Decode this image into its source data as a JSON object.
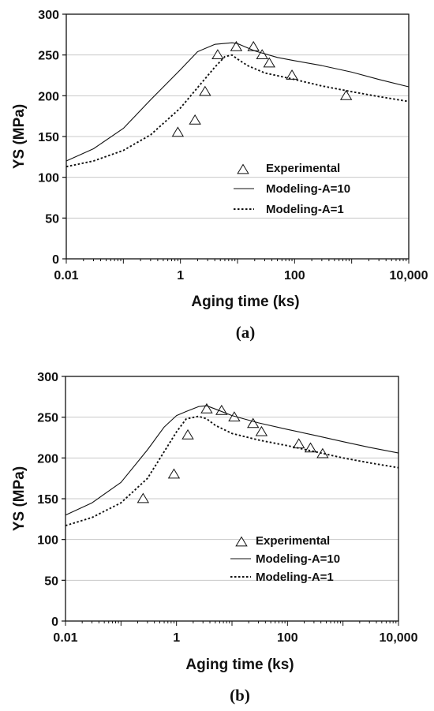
{
  "chart_data": [
    {
      "type": "scatter",
      "panel_label": "(a)",
      "xlabel": "Aging time (ks)",
      "ylabel": "YS (MPa)",
      "xscale": "log",
      "xlim": [
        0.01,
        10000
      ],
      "ylim": [
        0,
        300
      ],
      "x_ticks": [
        0.01,
        1,
        100,
        10000
      ],
      "x_tick_labels": [
        "0.01",
        "1",
        "100",
        "10,000"
      ],
      "y_ticks": [
        0,
        50,
        100,
        150,
        200,
        250,
        300
      ],
      "y_tick_labels": [
        "0",
        "50",
        "100",
        "150",
        "200",
        "250",
        "300"
      ],
      "grid": "horizontal",
      "legend_position": "center-right",
      "series": [
        {
          "name": "Experimental",
          "style": "triangle-marker",
          "x": [
            0.9,
            1.8,
            2.7,
            4.5,
            9.5,
            19,
            27,
            36,
            90,
            800
          ],
          "y": [
            155,
            170,
            205,
            250,
            260,
            260,
            250,
            240,
            225,
            200
          ]
        },
        {
          "name": "Modeling-A=10",
          "style": "solid",
          "x": [
            0.01,
            0.03,
            0.1,
            0.3,
            1,
            2,
            4,
            8,
            10,
            20,
            50,
            100,
            300,
            1000,
            3000,
            10000
          ],
          "y": [
            120,
            135,
            160,
            195,
            232,
            254,
            263,
            265,
            264,
            255,
            247,
            243,
            237,
            229,
            220,
            211
          ]
        },
        {
          "name": "Modeling-A=1",
          "style": "dotted",
          "x": [
            0.01,
            0.03,
            0.1,
            0.3,
            1,
            2,
            4,
            6,
            8,
            10,
            15,
            30,
            100,
            300,
            1000,
            3000,
            10000
          ],
          "y": [
            113,
            120,
            133,
            152,
            185,
            210,
            235,
            248,
            250,
            245,
            237,
            228,
            220,
            212,
            205,
            199,
            193
          ]
        }
      ]
    },
    {
      "type": "scatter",
      "panel_label": "(b)",
      "xlabel": "Aging time (ks)",
      "ylabel": "YS (MPa)",
      "xscale": "log",
      "xlim": [
        0.01,
        10000
      ],
      "ylim": [
        0,
        300
      ],
      "x_ticks": [
        0.01,
        1,
        100,
        10000
      ],
      "x_tick_labels": [
        "0.01",
        "1",
        "100",
        "10,000"
      ],
      "y_ticks": [
        0,
        50,
        100,
        150,
        200,
        250,
        300
      ],
      "y_tick_labels": [
        "0",
        "50",
        "100",
        "150",
        "200",
        "250",
        "300"
      ],
      "grid": "horizontal",
      "legend_position": "bottom-right",
      "series": [
        {
          "name": "Experimental",
          "style": "triangle-marker",
          "x": [
            0.25,
            0.9,
            1.6,
            3.5,
            6.5,
            11,
            24,
            34,
            160,
            260,
            430
          ],
          "y": [
            150,
            180,
            228,
            260,
            258,
            250,
            242,
            232,
            217,
            212,
            205
          ]
        },
        {
          "name": "Modeling-A=10",
          "style": "solid",
          "x": [
            0.01,
            0.03,
            0.1,
            0.3,
            0.6,
            1,
            1.5,
            2.5,
            3.5,
            5,
            10,
            30,
            100,
            300,
            1000,
            3000,
            10000
          ],
          "y": [
            130,
            145,
            170,
            210,
            238,
            252,
            257,
            263,
            264,
            260,
            252,
            243,
            235,
            228,
            220,
            213,
            206
          ]
        },
        {
          "name": "Modeling-A=1",
          "style": "dotted",
          "x": [
            0.01,
            0.03,
            0.1,
            0.3,
            1,
            1.5,
            2.5,
            3.5,
            5,
            10,
            30,
            100,
            300,
            1000,
            3000,
            10000
          ],
          "y": [
            117,
            127,
            145,
            175,
            232,
            248,
            251,
            248,
            240,
            230,
            222,
            215,
            208,
            200,
            194,
            188
          ]
        }
      ]
    }
  ]
}
